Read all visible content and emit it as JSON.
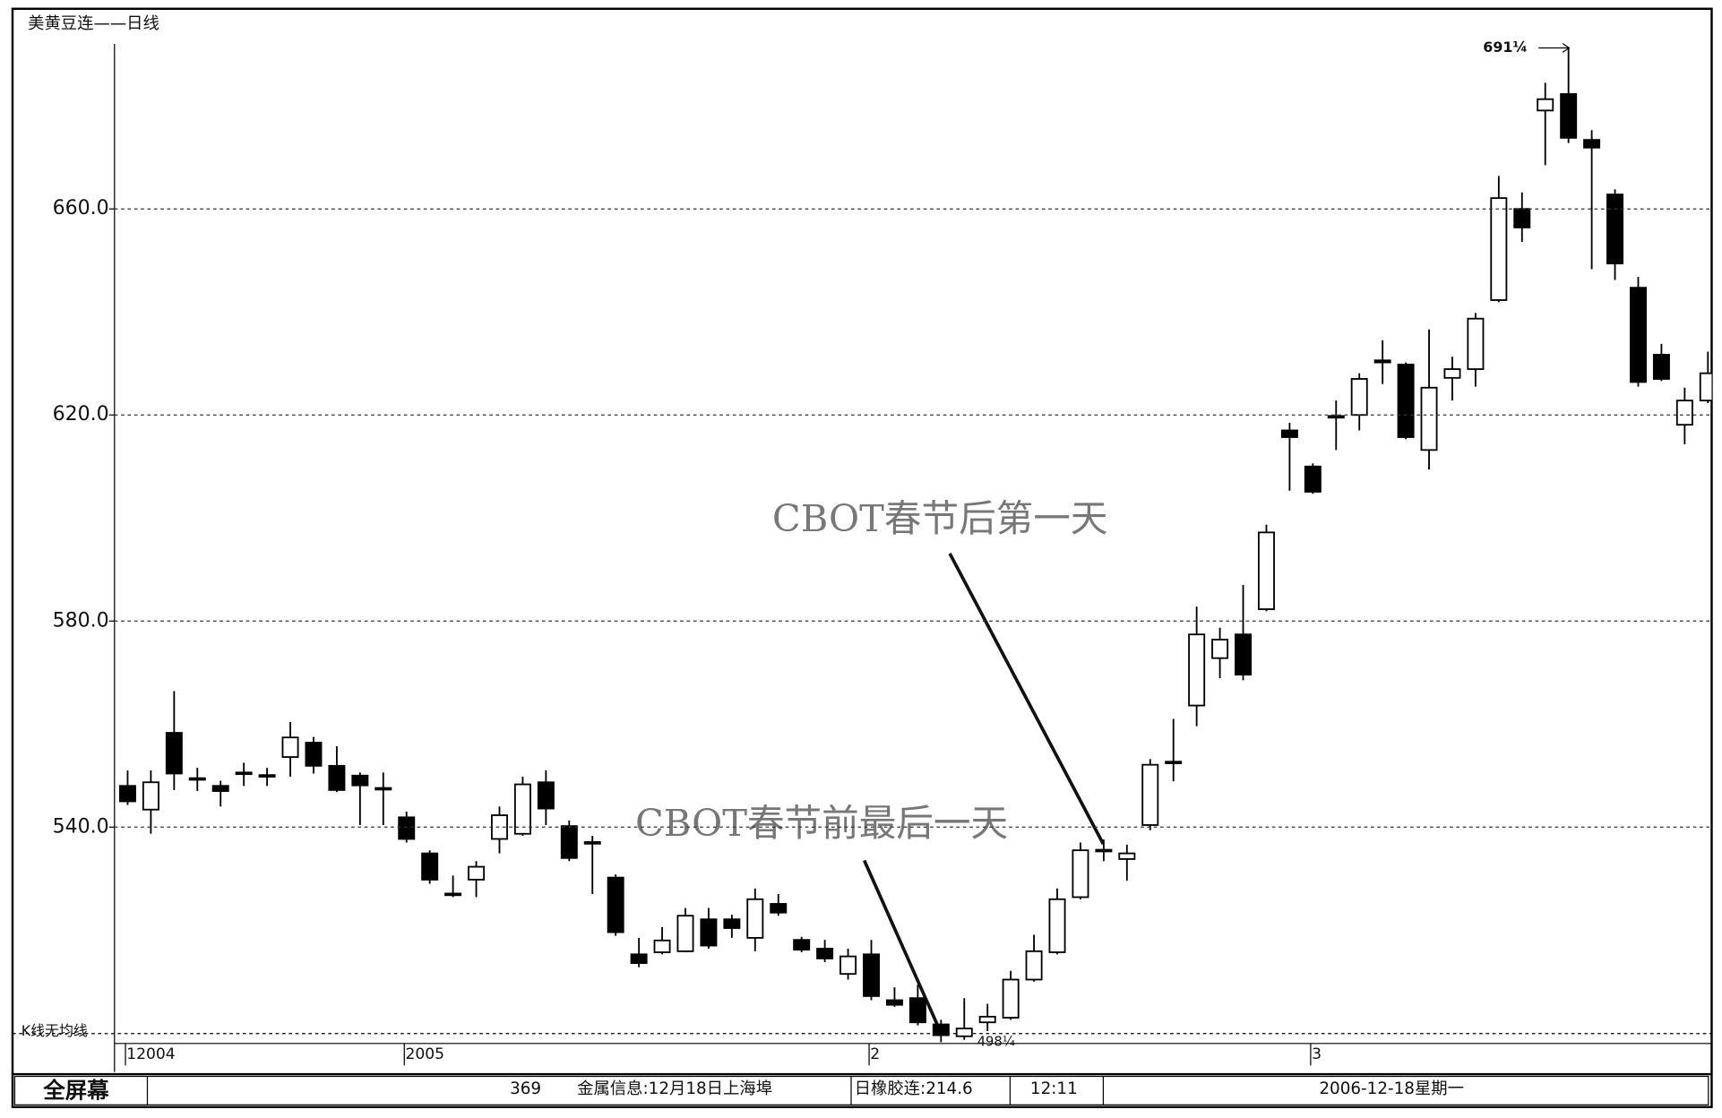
{
  "chart_data": {
    "type": "candlestick",
    "title": "美黄豆连——日线",
    "subtitle": "K线无均线",
    "categories": [
      "12004",
      null,
      null,
      null,
      null,
      null,
      null,
      null,
      null,
      null,
      null,
      null,
      "2005",
      null,
      null,
      null,
      null,
      null,
      null,
      null,
      null,
      null,
      null,
      null,
      null,
      null,
      null,
      null,
      null,
      null,
      null,
      null,
      "2",
      null,
      null,
      null,
      null,
      null,
      null,
      null,
      null,
      null,
      null,
      null,
      null,
      null,
      null,
      null,
      null,
      null,
      null,
      "3",
      null,
      null,
      null,
      null,
      null,
      null,
      null,
      null,
      null,
      null,
      null,
      null,
      null,
      null,
      null,
      null,
      null
    ],
    "open": [
      548.0,
      543.4,
      558.3,
      549.5,
      548.0,
      550.5,
      550.0,
      553.6,
      556.4,
      551.9,
      550.0,
      547.6,
      541.9,
      534.9,
      527.0,
      529.8,
      537.7,
      538.7,
      548.7,
      540.2,
      537.0,
      530.2,
      515.3,
      515.7,
      515.9,
      522.1,
      522.1,
      518.5,
      525.1,
      518.1,
      516.4,
      511.5,
      515.3,
      506.4,
      506.8,
      501.7,
      499.4,
      502.1,
      503.0,
      510.4,
      515.7,
      526.4,
      535.5,
      533.8,
      540.4,
      552.6,
      563.6,
      572.8,
      577.4,
      582.3,
      617.0,
      610.0,
      619.6,
      620.0,
      630.6,
      629.8,
      613.2,
      627.2,
      628.9,
      642.3,
      660.0,
      679.1,
      682.3,
      673.4,
      662.8,
      644.7,
      631.7,
      618.1,
      622.8
    ],
    "high": [
      551.0,
      551.0,
      566.4,
      551.5,
      549.0,
      552.5,
      551.5,
      560.4,
      557.5,
      555.7,
      550.6,
      550.6,
      543.0,
      535.5,
      530.6,
      533.4,
      544.0,
      549.8,
      551.0,
      541.3,
      538.3,
      530.8,
      518.5,
      520.6,
      524.3,
      524.3,
      523.0,
      528.1,
      527.0,
      518.7,
      518.1,
      516.4,
      518.1,
      508.9,
      509.4,
      502.6,
      506.8,
      505.7,
      512.1,
      519.1,
      528.1,
      537.0,
      537.6,
      536.6,
      553.2,
      561.0,
      582.8,
      578.7,
      587.0,
      598.7,
      618.5,
      610.6,
      622.8,
      628.1,
      634.5,
      630.2,
      636.6,
      631.3,
      639.8,
      666.4,
      663.2,
      684.5,
      691.25,
      675.3,
      663.8,
      646.8,
      633.8,
      625.3,
      632.3
    ],
    "low": [
      544.3,
      538.7,
      547.2,
      547.0,
      544.0,
      548.0,
      548.0,
      549.8,
      550.4,
      546.8,
      540.4,
      540.4,
      537.0,
      529.0,
      526.4,
      526.4,
      534.9,
      538.3,
      540.4,
      533.4,
      527.0,
      518.9,
      512.8,
      515.3,
      515.7,
      516.4,
      518.5,
      515.9,
      522.8,
      515.7,
      513.8,
      510.4,
      506.4,
      505.1,
      501.5,
      498.25,
      498.7,
      500.4,
      502.6,
      510.0,
      515.3,
      526.0,
      533.4,
      529.6,
      539.4,
      548.9,
      559.6,
      568.9,
      568.5,
      581.9,
      605.3,
      604.7,
      613.2,
      617.0,
      626.0,
      615.3,
      609.4,
      622.8,
      625.5,
      641.9,
      653.6,
      668.5,
      672.8,
      648.3,
      646.2,
      625.5,
      626.6,
      614.3,
      622.3
    ],
    "close": [
      545.0,
      548.7,
      550.4,
      549.4,
      547.0,
      550.6,
      550.1,
      557.4,
      551.9,
      547.2,
      548.1,
      547.4,
      537.7,
      529.8,
      527.1,
      532.3,
      542.3,
      548.3,
      543.6,
      534.0,
      537.1,
      519.6,
      513.6,
      518.0,
      522.8,
      517.0,
      520.4,
      526.0,
      523.4,
      516.2,
      514.5,
      514.9,
      507.2,
      505.5,
      502.1,
      499.6,
      500.9,
      503.2,
      510.4,
      515.9,
      526.0,
      535.5,
      535.6,
      534.9,
      552.1,
      552.7,
      577.4,
      576.4,
      569.6,
      597.2,
      615.7,
      605.1,
      619.8,
      627.0,
      630.2,
      615.7,
      625.3,
      628.9,
      638.7,
      662.1,
      656.4,
      681.3,
      673.8,
      671.9,
      649.4,
      626.4,
      627.0,
      622.8,
      628.1
    ],
    "up_color": "#ffffff",
    "down_color": "#000000",
    "ylim": [
      498,
      698
    ],
    "yticks": [
      {
        "value": 540,
        "label": "540.0"
      },
      {
        "value": 580,
        "label": "580.0"
      },
      {
        "value": 620,
        "label": "620.0"
      },
      {
        "value": 660,
        "label": "660.0"
      }
    ],
    "grid": true,
    "max_label": {
      "value": 691.25,
      "label": "691¼"
    },
    "min_label": {
      "value": 498.25,
      "label": "498¼"
    },
    "annotations": [
      "CBOT春节后第一天",
      "CBOT春节前最后一天"
    ]
  },
  "status_bar": [
    "全屏幕",
    "369",
    "金属信息:12月18日上海埠",
    "日橡胶连:214.6",
    "12:11",
    "2006-12-18星期一"
  ]
}
